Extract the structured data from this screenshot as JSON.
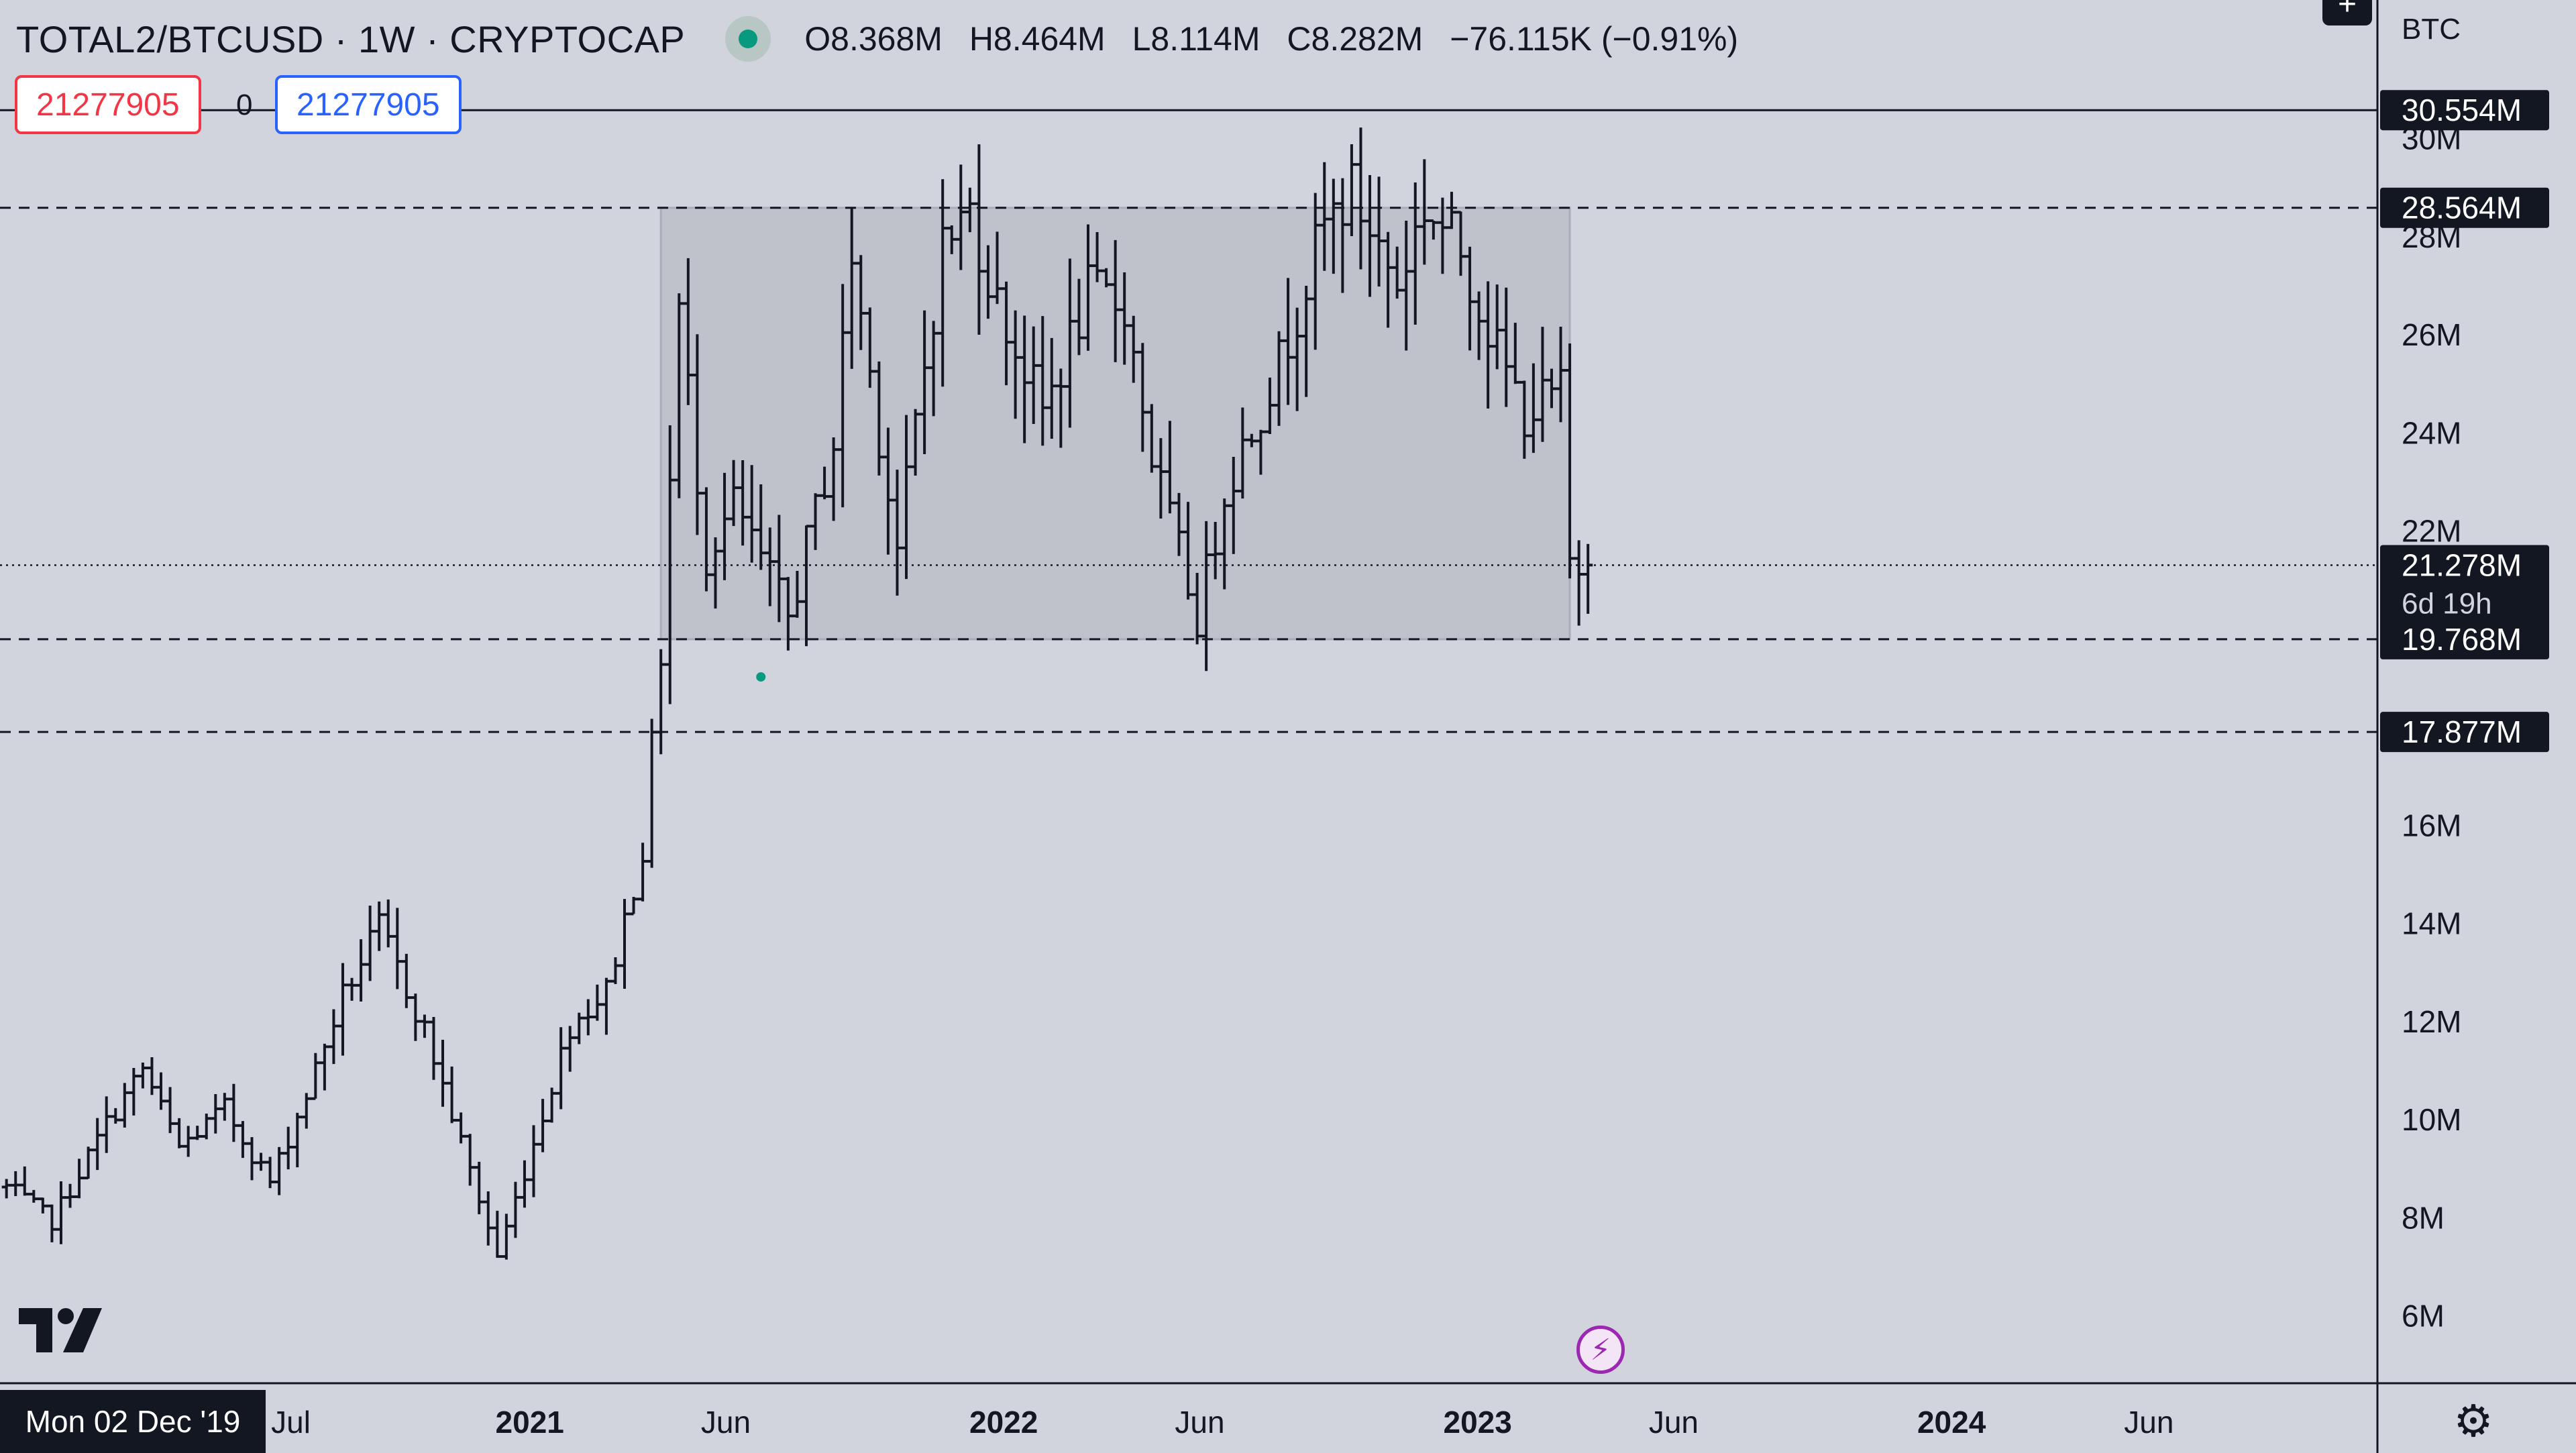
{
  "legend": {
    "title": "TOTAL2/BTCUSD · 1W · CRYPTOCAP",
    "open": "O8.368M",
    "high": "H8.464M",
    "low": "L8.114M",
    "close": "C8.282M",
    "change": "−76.115K (−0.91%)"
  },
  "crosshair": {
    "red_value": "21277905",
    "zero": "0",
    "blue_value": "21277905",
    "date_label": "Mon 02 Dec '19"
  },
  "colors": {
    "background": "#d1d4dc",
    "bar": "#131722",
    "range_box": "#b8bcc6",
    "live_dot": "#089981",
    "red": "#f23645",
    "blue": "#2962ff",
    "bolt": "#9c27b0"
  },
  "icons": {
    "plus": "plus-icon",
    "live": "live-dot-icon",
    "settings": "gear-icon",
    "logo": "tradingview-logo-icon",
    "alert": "lightning-bolt-icon"
  },
  "chart_data": {
    "type": "ohlc-bar",
    "currency": "BTC",
    "yticks": [
      "6M",
      "8M",
      "10M",
      "12M",
      "14M",
      "16M",
      "22M",
      "24M",
      "26M",
      "28M",
      "30M"
    ],
    "ytick_values": [
      6,
      8,
      10,
      12,
      14,
      16,
      22,
      24,
      26,
      28,
      30
    ],
    "ylim": [
      4.6,
      32.8
    ],
    "xticks": [
      "Jul",
      "2021",
      "Jun",
      "2022",
      "Jun",
      "2023",
      "Jun",
      "2024",
      "Jun"
    ],
    "xtick_dates": [
      "2020-07-01",
      "2021-01-01",
      "2021-06-01",
      "2022-01-01",
      "2022-06-01",
      "2023-01-01",
      "2023-06-01",
      "2024-01-01",
      "2024-06-01"
    ],
    "xlim": [
      "2019-11-20",
      "2024-11-24"
    ],
    "horizontal_lines": [
      {
        "value": 30.554,
        "label": "30.554M",
        "style": "solid"
      },
      {
        "value": 28.564,
        "label": "28.564M",
        "style": "dashed"
      },
      {
        "value": 21.278,
        "label": "21.278M",
        "sublabel": "6d 19h",
        "style": "dotted"
      },
      {
        "value": 19.768,
        "label": "19.768M",
        "style": "dashed"
      },
      {
        "value": 17.877,
        "label": "17.877M",
        "style": "dashed"
      }
    ],
    "range_box": {
      "start": "2021-04-12",
      "end": "2023-03-13",
      "top": 28.564,
      "bottom": 19.768
    },
    "marker": {
      "date": "2021-06-28",
      "value": 19.0
    },
    "series_anchors": [
      [
        "2019-11-25",
        8.6
      ],
      [
        "2019-12-30",
        7.9
      ],
      [
        "2020-02-10",
        9.9
      ],
      [
        "2020-03-09",
        11.0
      ],
      [
        "2020-04-06",
        9.4
      ],
      [
        "2020-05-11",
        10.2
      ],
      [
        "2020-06-15",
        8.7
      ],
      [
        "2020-07-13",
        10.5
      ],
      [
        "2020-08-10",
        12.5
      ],
      [
        "2020-09-07",
        13.9
      ],
      [
        "2020-10-12",
        11.8
      ],
      [
        "2020-11-09",
        9.5
      ],
      [
        "2020-12-07",
        7.2
      ],
      [
        "2021-01-04",
        9.5
      ],
      [
        "2021-02-01",
        11.9
      ],
      [
        "2021-03-01",
        12.6
      ],
      [
        "2021-03-29",
        15.5
      ],
      [
        "2021-04-12",
        19.5
      ],
      [
        "2021-04-26",
        26.5
      ],
      [
        "2021-05-17",
        21.5
      ],
      [
        "2021-06-07",
        22.5
      ],
      [
        "2021-07-19",
        20.2
      ],
      [
        "2021-08-23",
        23.8
      ],
      [
        "2021-09-06",
        27.6
      ],
      [
        "2021-10-11",
        21.6
      ],
      [
        "2021-10-25",
        24.1
      ],
      [
        "2021-11-15",
        27.8
      ],
      [
        "2021-12-06",
        28.5
      ],
      [
        "2021-12-27",
        26.6
      ],
      [
        "2022-01-31",
        24.4
      ],
      [
        "2022-03-07",
        26.8
      ],
      [
        "2022-04-04",
        26.6
      ],
      [
        "2022-04-25",
        23.5
      ],
      [
        "2022-05-30",
        20.2
      ],
      [
        "2022-06-20",
        22.8
      ],
      [
        "2022-08-01",
        25.4
      ],
      [
        "2022-09-05",
        28.2
      ],
      [
        "2022-09-26",
        28.9
      ],
      [
        "2022-10-31",
        27.0
      ],
      [
        "2022-11-21",
        28.6
      ],
      [
        "2022-12-19",
        27.7
      ],
      [
        "2023-01-16",
        25.6
      ],
      [
        "2023-02-06",
        24.4
      ],
      [
        "2023-03-06",
        24.8
      ],
      [
        "2023-03-13",
        21.3
      ],
      [
        "2023-03-27",
        21.28
      ]
    ]
  }
}
